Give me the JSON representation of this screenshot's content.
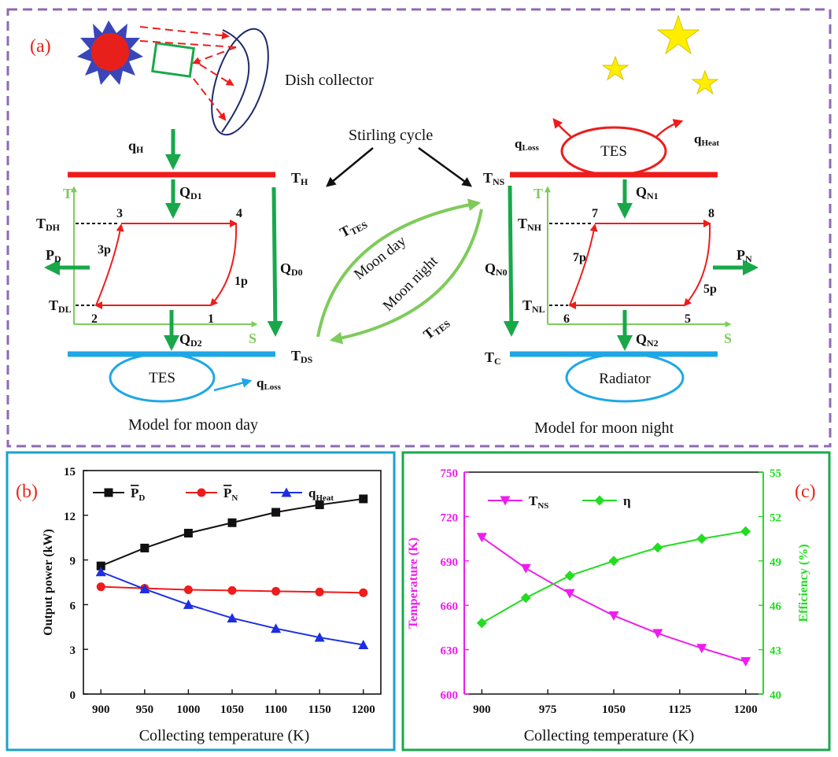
{
  "colors": {
    "panel_a_border": "#8c6bb1",
    "panel_b_border": "#1aa3c8",
    "panel_c_border": "#1aa84e",
    "label_red": "#e8261b",
    "hot_line": "#ee1c1c",
    "cold_line": "#1ea7e6",
    "flow_green": "#18a84a",
    "ts_axis_green": "#7ecb5a",
    "cycle_red": "#ee1c1c",
    "series_black": "#111111",
    "series_red": "#ee1c1c",
    "series_blue": "#1c2fe0",
    "series_magenta": "#ee1cee",
    "series_green": "#22dd22",
    "star_yellow": "#ffee00",
    "sun_red": "#e8201c",
    "sun_rays": "#3a46b8"
  },
  "panel_a": {
    "label": "(a)",
    "dish_collector": "Dish collector",
    "stirling_cycle": "Stirling cycle",
    "moon_day_curve": "Moon day",
    "moon_night_curve": "Moon night",
    "caption_day": "Model for moon day",
    "caption_night": "Model for moon night",
    "day": {
      "qH": {
        "main": "q",
        "sub": "H"
      },
      "TH": {
        "main": "T",
        "sub": "H"
      },
      "QD1": {
        "main": "Q",
        "sub": "D1"
      },
      "QD0": {
        "main": "Q",
        "sub": "D0"
      },
      "QD2": {
        "main": "Q",
        "sub": "D2"
      },
      "TDH": {
        "main": "T",
        "sub": "DH"
      },
      "TDL": {
        "main": "T",
        "sub": "DL"
      },
      "PD": {
        "main": "P",
        "sub": "D"
      },
      "TDS": {
        "main": "T",
        "sub": "DS"
      },
      "qLoss": {
        "main": "q",
        "sub": "Loss"
      },
      "TES": "TES",
      "axis_T": "T",
      "axis_S": "S",
      "points": [
        "3",
        "4",
        "3p",
        "1p",
        "2",
        "1"
      ]
    },
    "middle": {
      "TTES_top": {
        "main": "T",
        "sub": "TES"
      },
      "TTES_bottom": {
        "main": "T",
        "sub": "TES"
      }
    },
    "night": {
      "qLoss": {
        "main": "q",
        "sub": "Loss"
      },
      "qHeat": {
        "main": "q",
        "sub": "Heat"
      },
      "TES": "TES",
      "TNS": {
        "main": "T",
        "sub": "NS"
      },
      "QN1": {
        "main": "Q",
        "sub": "N1"
      },
      "QN0": {
        "main": "Q",
        "sub": "N0"
      },
      "QN2": {
        "main": "Q",
        "sub": "N2"
      },
      "TNH": {
        "main": "T",
        "sub": "NH"
      },
      "TNL": {
        "main": "T",
        "sub": "NL"
      },
      "PN": {
        "main": "P",
        "sub": "N"
      },
      "TC": {
        "main": "T",
        "sub": "C"
      },
      "radiator": "Radiator",
      "axis_T": "T",
      "axis_S": "S",
      "points": [
        "7",
        "8",
        "7p",
        "5p",
        "6",
        "5"
      ]
    }
  },
  "chart_data": [
    {
      "type": "line",
      "label": "(b)",
      "xlabel": "Collecting temperature (K)",
      "ylabel": "Output power (kW)",
      "x": [
        900,
        950,
        1000,
        1050,
        1100,
        1150,
        1200
      ],
      "xlim": [
        880,
        1220
      ],
      "ylim": [
        0,
        15
      ],
      "xticks": [
        "900",
        "950",
        "1000",
        "1050",
        "1100",
        "1150",
        "1200"
      ],
      "yticks": [
        "0",
        "3",
        "6",
        "9",
        "12",
        "15"
      ],
      "legend_placement": "top",
      "series": [
        {
          "name": "P",
          "sub": "D",
          "overline": true,
          "marker": "square",
          "values": [
            8.6,
            9.8,
            10.8,
            11.5,
            12.2,
            12.7,
            13.1
          ]
        },
        {
          "name": "P",
          "sub": "N",
          "overline": true,
          "marker": "circle",
          "values": [
            7.2,
            7.1,
            7.0,
            6.95,
            6.9,
            6.85,
            6.8
          ]
        },
        {
          "name": "q",
          "sub": "Heat",
          "overline": false,
          "marker": "triangle",
          "values": [
            8.2,
            7.05,
            6.0,
            5.1,
            4.4,
            3.8,
            3.3
          ]
        }
      ]
    },
    {
      "type": "line",
      "label": "(c)",
      "xlabel": "Collecting temperature (K)",
      "ylabel_left": "Temperature (K)",
      "ylabel_right": "Efficiency (%)",
      "x": [
        900,
        950,
        1000,
        1050,
        1100,
        1150,
        1200
      ],
      "xlim": [
        880,
        1220
      ],
      "ylim_left": [
        600,
        750
      ],
      "ylim_right": [
        40,
        55
      ],
      "xticks": [
        "900",
        "975",
        "1050",
        "1125",
        "1200"
      ],
      "xtick_values": [
        900,
        975,
        1050,
        1125,
        1200
      ],
      "yticks_left": [
        "600",
        "630",
        "660",
        "690",
        "720",
        "750"
      ],
      "yticks_right": [
        "40",
        "43",
        "46",
        "49",
        "52",
        "55"
      ],
      "legend_placement": "top",
      "series": [
        {
          "name": "T",
          "sub": "NS",
          "axis": "left",
          "marker": "triangle-down",
          "values": [
            706,
            685,
            668,
            653,
            641,
            631,
            622
          ]
        },
        {
          "name": "η",
          "sub": "",
          "axis": "right",
          "marker": "diamond",
          "values": [
            44.8,
            46.5,
            48.0,
            49.0,
            49.9,
            50.5,
            51.0
          ]
        }
      ]
    }
  ]
}
